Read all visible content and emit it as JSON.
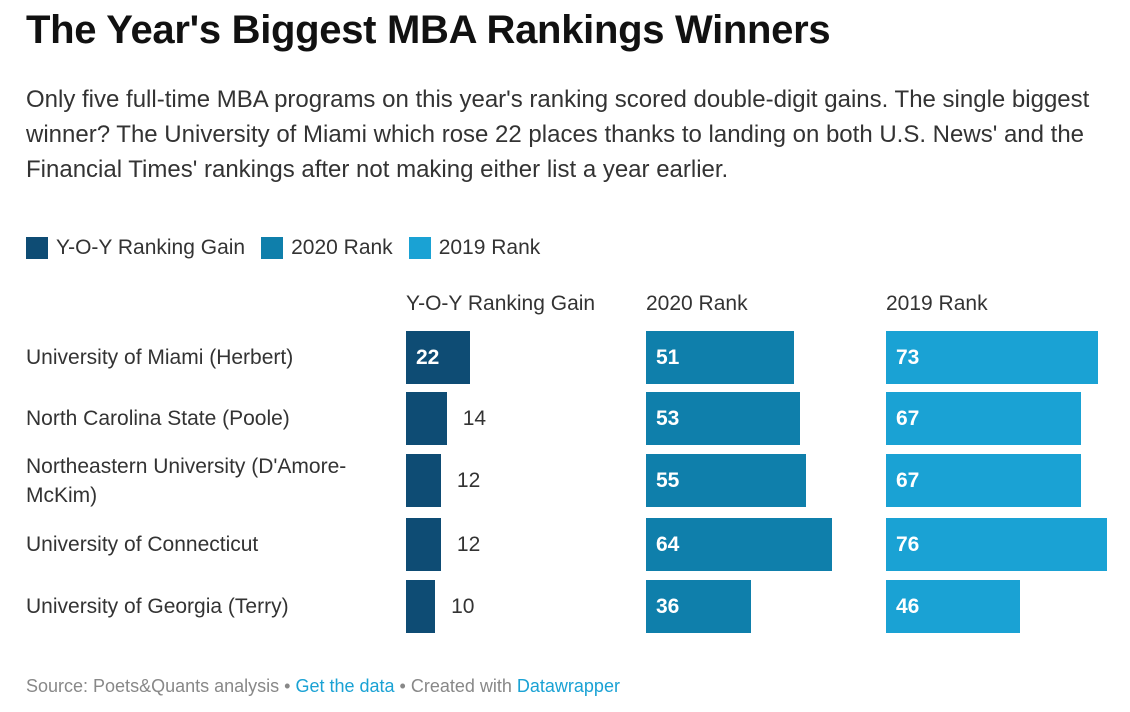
{
  "title": "The Year's Biggest MBA Rankings Winners",
  "subtitle": "Only five full-time MBA programs on this year's ranking scored double-digit gains. The single biggest winner? The University of Miami which rose 22 places thanks to landing on both U.S. News' and the Financial Times' rankings after not making either list a year earlier.",
  "legend": [
    {
      "label": "Y-O-Y Ranking Gain",
      "color": "#0e4c74"
    },
    {
      "label": "2020 Rank",
      "color": "#0f7fab"
    },
    {
      "label": "2019 Rank",
      "color": "#1aa2d4"
    }
  ],
  "footer": {
    "source": "Source: Poets&Quants analysis",
    "sep1": " • ",
    "data_link": "Get the data",
    "sep2": " • Created with ",
    "tool_link": "Datawrapper"
  },
  "chart_data": {
    "type": "bar",
    "categories": [
      "University of Miami (Herbert)",
      "North Carolina State (Poole)",
      "Northeastern University (D'Amore-McKim)",
      "University of Connecticut",
      "University of Georgia (Terry)"
    ],
    "series": [
      {
        "name": "Y-O-Y Ranking Gain",
        "values": [
          22,
          14,
          12,
          12,
          10
        ],
        "color": "#0e4c74"
      },
      {
        "name": "2020 Rank",
        "values": [
          51,
          53,
          55,
          64,
          36
        ],
        "color": "#0f7fab"
      },
      {
        "name": "2019 Rank",
        "values": [
          73,
          67,
          67,
          76,
          46
        ],
        "color": "#1aa2d4"
      }
    ]
  }
}
